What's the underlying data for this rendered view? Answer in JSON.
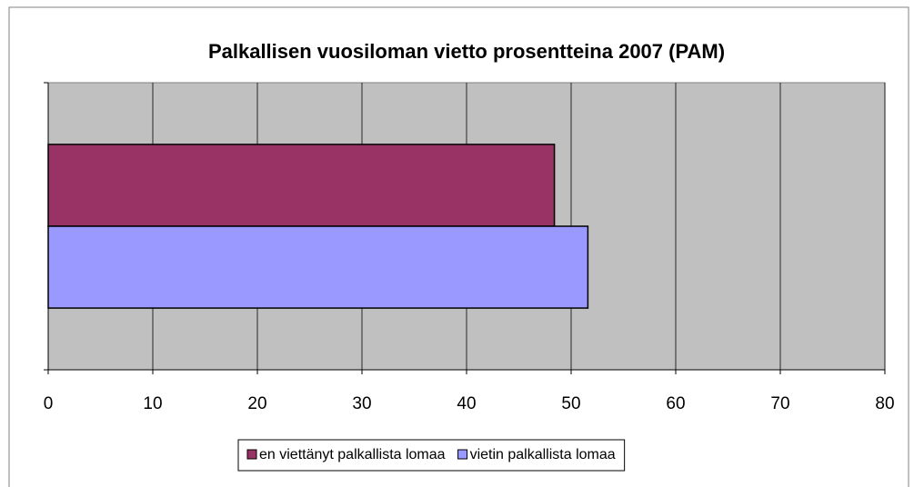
{
  "chart_data": {
    "type": "bar",
    "horizontal": true,
    "title": "Palkallisen vuosiloman vietto prosentteina 2007 (PAM)",
    "categories": [
      null
    ],
    "series": [
      {
        "name": "en viettänyt palkallista lomaa",
        "color": "#993366",
        "values": [
          48.4
        ]
      },
      {
        "name": "vietin palkallista lomaa",
        "color": "#9999ff",
        "values": [
          51.6
        ]
      }
    ],
    "xlim": [
      0,
      80
    ],
    "xticks": [
      0,
      10,
      20,
      30,
      40,
      50,
      60,
      70,
      80
    ],
    "grid": true,
    "plot_background": "#c0c0c0",
    "legend": "bottom"
  }
}
